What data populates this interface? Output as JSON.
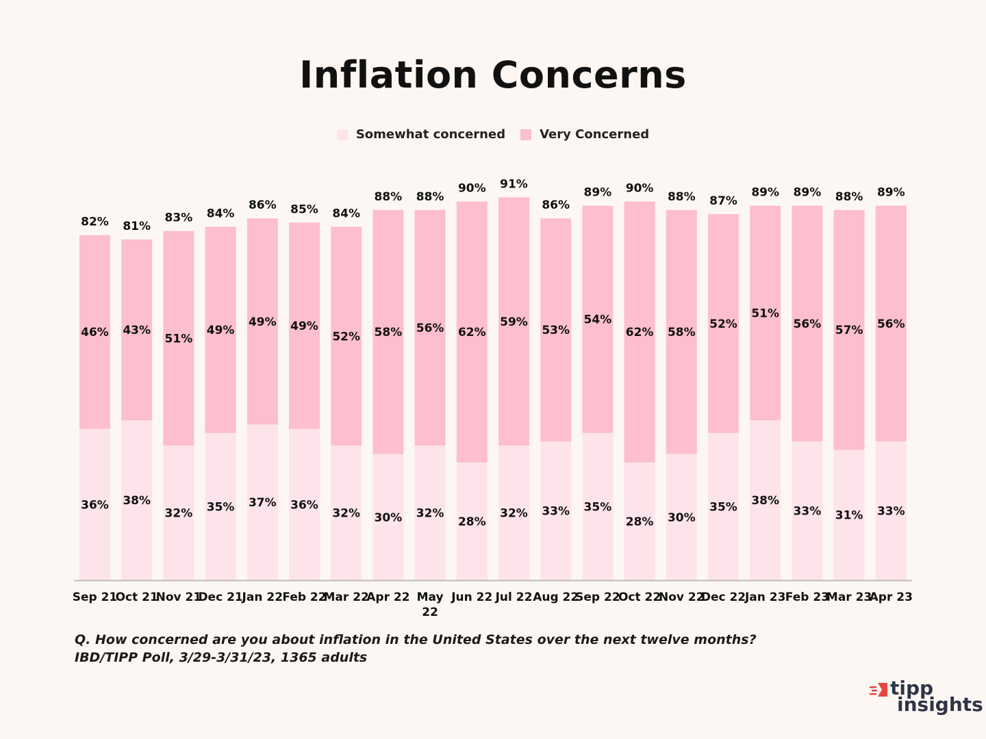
{
  "colors": {
    "background": "#fdf7f3",
    "somewhat": "#fde4ea",
    "very": "#fdbfcd",
    "axis": "#bbbbbb",
    "logo_accent": "#e8453c",
    "logo_text": "#2f3447"
  },
  "logo": {
    "line1": "tipp",
    "line2": "insights"
  },
  "footnote": {
    "question": "Q. How concerned are you about inflation in the United States over the next twelve months?",
    "source": "IBD/TIPP Poll, 3/29-3/31/23, 1365 adults"
  },
  "chart_data": {
    "type": "bar",
    "stacked": true,
    "title": "Inflation Concerns",
    "legend_position": "top-center",
    "grid": false,
    "ylim": [
      0,
      100
    ],
    "categories": [
      "Sep 21",
      "Oct 21",
      "Nov 21",
      "Dec 21",
      "Jan 22",
      "Feb 22",
      "Mar 22",
      "Apr 22",
      "May 22",
      "Jun 22",
      "Jul 22",
      "Aug 22",
      "Sep 22",
      "Oct 22",
      "Nov 22",
      "Dec 22",
      "Jan 23",
      "Feb 23",
      "Mar 23",
      "Apr 23"
    ],
    "series": [
      {
        "name": "Somewhat concerned",
        "values": [
          36,
          38,
          32,
          35,
          37,
          36,
          32,
          30,
          32,
          28,
          32,
          33,
          35,
          28,
          30,
          35,
          38,
          33,
          31,
          33
        ],
        "labels": [
          "36%",
          "38%",
          "32%",
          "35%",
          "37%",
          "36%",
          "32%",
          "30%",
          "32%",
          "28%",
          "32%",
          "33%",
          "35%",
          "28%",
          "30%",
          "35%",
          "38%",
          "33%",
          "31%",
          "33%"
        ]
      },
      {
        "name": "Very Concerned",
        "values": [
          46,
          43,
          51,
          49,
          49,
          49,
          52,
          58,
          56,
          62,
          59,
          53,
          54,
          62,
          58,
          52,
          51,
          56,
          57,
          56
        ],
        "labels": [
          "46%",
          "43%",
          "51%",
          "49%",
          "49%",
          "49%",
          "52%",
          "58%",
          "56%",
          "62%",
          "59%",
          "53%",
          "54%",
          "62%",
          "58%",
          "52%",
          "51%",
          "56%",
          "57%",
          "56%"
        ]
      }
    ],
    "totals": [
      82,
      81,
      83,
      84,
      86,
      85,
      84,
      88,
      88,
      90,
      91,
      86,
      89,
      90,
      88,
      87,
      89,
      89,
      88,
      89
    ],
    "total_labels": [
      "82%",
      "81%",
      "83%",
      "84%",
      "86%",
      "85%",
      "84%",
      "88%",
      "88%",
      "90%",
      "91%",
      "86%",
      "89%",
      "90%",
      "88%",
      "87%",
      "89%",
      "89%",
      "88%",
      "89%"
    ]
  }
}
